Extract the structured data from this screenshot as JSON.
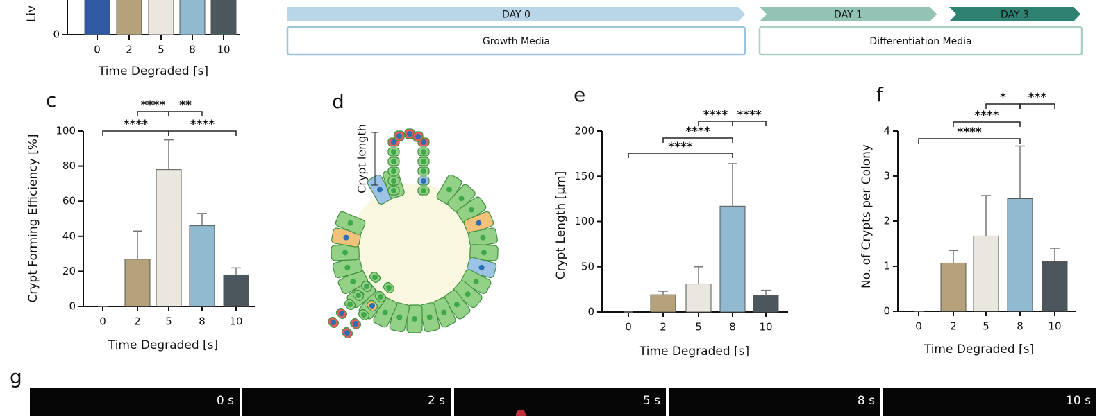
{
  "panel_letters": [
    "c",
    "d",
    "e",
    "f",
    "g"
  ],
  "timeline": {
    "arrows": [
      {
        "label": "DAY 0",
        "color": "#b9d6e8"
      },
      {
        "label": "DAY 1",
        "color": "#93c3b4"
      },
      {
        "label": "DAY 3",
        "color": "#2f8272"
      }
    ],
    "boxes": [
      {
        "label": "Growth Media",
        "color": "#9cc4dc"
      },
      {
        "label": "Differentiation Media",
        "color": "#a9d0c6"
      }
    ]
  },
  "diagram": {
    "label": "Crypt length"
  },
  "images": {
    "labels": [
      "0 s",
      "2 s",
      "5 s",
      "8 s",
      "10 s"
    ]
  },
  "chart_data": [
    {
      "type": "bar",
      "ylabel": "Liv",
      "xlabel": "Time Degraded  [s]",
      "categories": [
        "0",
        "2",
        "5",
        "8",
        "10"
      ],
      "yticks": [
        0
      ],
      "colors": [
        "#2f5aa3",
        "#b5a27a",
        "#e9e7de",
        "#8fbad0",
        "#4b565d"
      ]
    },
    {
      "type": "bar",
      "ylabel": "Crypt Forming Efficiency [%]",
      "xlabel": "Time Degraded  [s]",
      "categories": [
        "0",
        "2",
        "5",
        "8",
        "10"
      ],
      "values": [
        0,
        27,
        78,
        46,
        18
      ],
      "errors": [
        0,
        16,
        17,
        7,
        4
      ],
      "ylim": [
        0,
        100
      ],
      "yticks": [
        0,
        20,
        40,
        60,
        80,
        100
      ],
      "colors": [
        "#2f5aa3",
        "#b5a27a",
        "#e9e7de",
        "#8fbad0",
        "#4b565d"
      ],
      "annotations": [
        {
          "text": "****",
          "from": "0",
          "to": "5"
        },
        {
          "text": "****",
          "from": "5",
          "to": "10"
        },
        {
          "text": "****",
          "from": "2",
          "to": "5"
        },
        {
          "text": "**",
          "from": "5",
          "to": "8"
        }
      ]
    },
    {
      "type": "bar",
      "ylabel": "Crypt Length [µm]",
      "xlabel": "Time Degraded  [s]",
      "categories": [
        "0",
        "2",
        "5",
        "8",
        "10"
      ],
      "values": [
        0,
        19,
        31,
        117,
        18
      ],
      "errors": [
        0,
        4,
        19,
        47,
        6
      ],
      "ylim": [
        0,
        200
      ],
      "yticks": [
        0,
        50,
        100,
        150,
        200
      ],
      "colors": [
        "#2f5aa3",
        "#b5a27a",
        "#e9e7de",
        "#8fbad0",
        "#4b565d"
      ],
      "annotations": [
        {
          "text": "****",
          "from": "0",
          "to": "8"
        },
        {
          "text": "****",
          "from": "2",
          "to": "8"
        },
        {
          "text": "****",
          "from": "5",
          "to": "8"
        },
        {
          "text": "****",
          "from": "8",
          "to": "10"
        }
      ]
    },
    {
      "type": "bar",
      "ylabel": "No. of Crypts per Colony",
      "xlabel": "Time Degraded  [s]",
      "categories": [
        "0",
        "2",
        "5",
        "8",
        "10"
      ],
      "values": [
        0,
        1.07,
        1.67,
        2.5,
        1.1
      ],
      "errors": [
        0,
        0.28,
        0.9,
        1.17,
        0.3
      ],
      "ylim": [
        0,
        4
      ],
      "yticks": [
        0,
        1,
        2,
        3,
        4
      ],
      "colors": [
        "#2f5aa3",
        "#b5a27a",
        "#e9e7de",
        "#8fbad0",
        "#4b565d"
      ],
      "annotations": [
        {
          "text": "****",
          "from": "0",
          "to": "8"
        },
        {
          "text": "****",
          "from": "2",
          "to": "8"
        },
        {
          "text": "*",
          "from": "5",
          "to": "8"
        },
        {
          "text": "***",
          "from": "8",
          "to": "10"
        }
      ]
    }
  ]
}
